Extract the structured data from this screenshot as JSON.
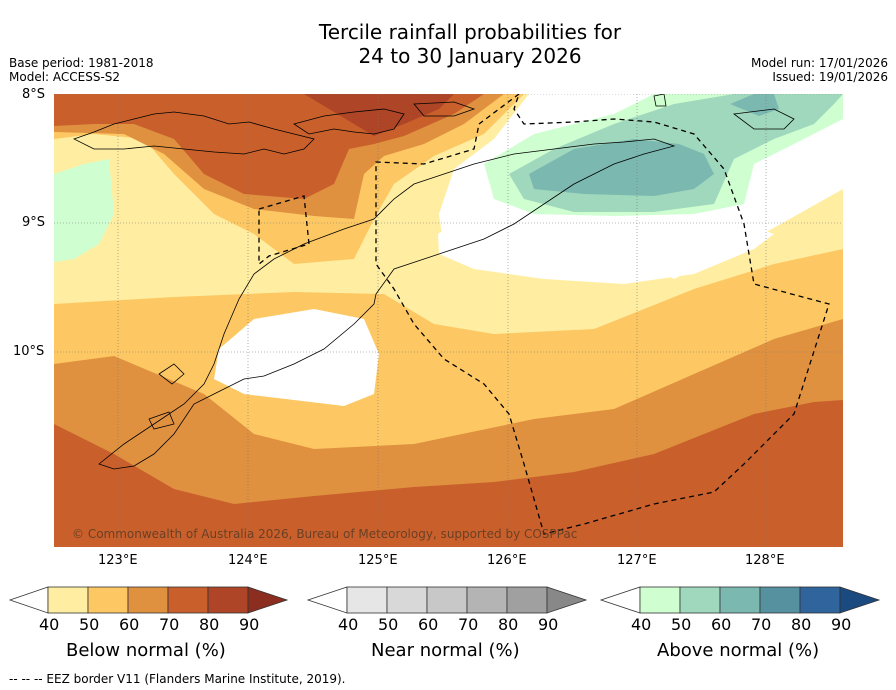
{
  "title_line1": "Tercile rainfall probabilities for",
  "title_line2": "24 to 30 January 2026",
  "base_period": "Base period: 1981-2018",
  "model": "Model: ACCESS-S2",
  "model_run": "Model run: 17/01/2026",
  "issued": "Issued: 19/01/2026",
  "lat_labels": [
    "8°S",
    "9°S",
    "10°S"
  ],
  "lon_labels": [
    "123°E",
    "124°E",
    "125°E",
    "126°E",
    "127°E",
    "128°E"
  ],
  "copyright": "© Commonwealth of Australia 2026, Bureau of Meteorology, supported by COSPPac",
  "colorbars": [
    {
      "title": "Below normal (%)",
      "ticks": [
        "40",
        "50",
        "60",
        "70",
        "80",
        "90"
      ],
      "colors": [
        "#ffeea2",
        "#fdc863",
        "#df9140",
        "#c9602c",
        "#ad4526",
        "#8b2e1f"
      ]
    },
    {
      "title": "Near normal (%)",
      "ticks": [
        "40",
        "50",
        "60",
        "70",
        "80",
        "90"
      ],
      "colors": [
        "#e6e6e6",
        "#d8d8d8",
        "#c8c8c8",
        "#b4b4b4",
        "#a0a0a0",
        "#888888"
      ]
    },
    {
      "title": "Above normal (%)",
      "ticks": [
        "40",
        "50",
        "60",
        "70",
        "80",
        "90"
      ],
      "colors": [
        "#cfffd0",
        "#a0d8bd",
        "#7bb8b0",
        "#5691a0",
        "#2f659c",
        "#1a4a80"
      ]
    }
  ],
  "footnote": "--  --  -- EEZ border V11 (Flanders Marine Institute, 2019).",
  "colors": {
    "bg": "#ffffff",
    "b40": "#ffeea2",
    "b50": "#fdc863",
    "b60": "#df9140",
    "b70": "#c9602c",
    "b80": "#ad4526",
    "a40": "#cfffd0",
    "a50": "#a0d8bd",
    "a60": "#7bb8b0"
  }
}
